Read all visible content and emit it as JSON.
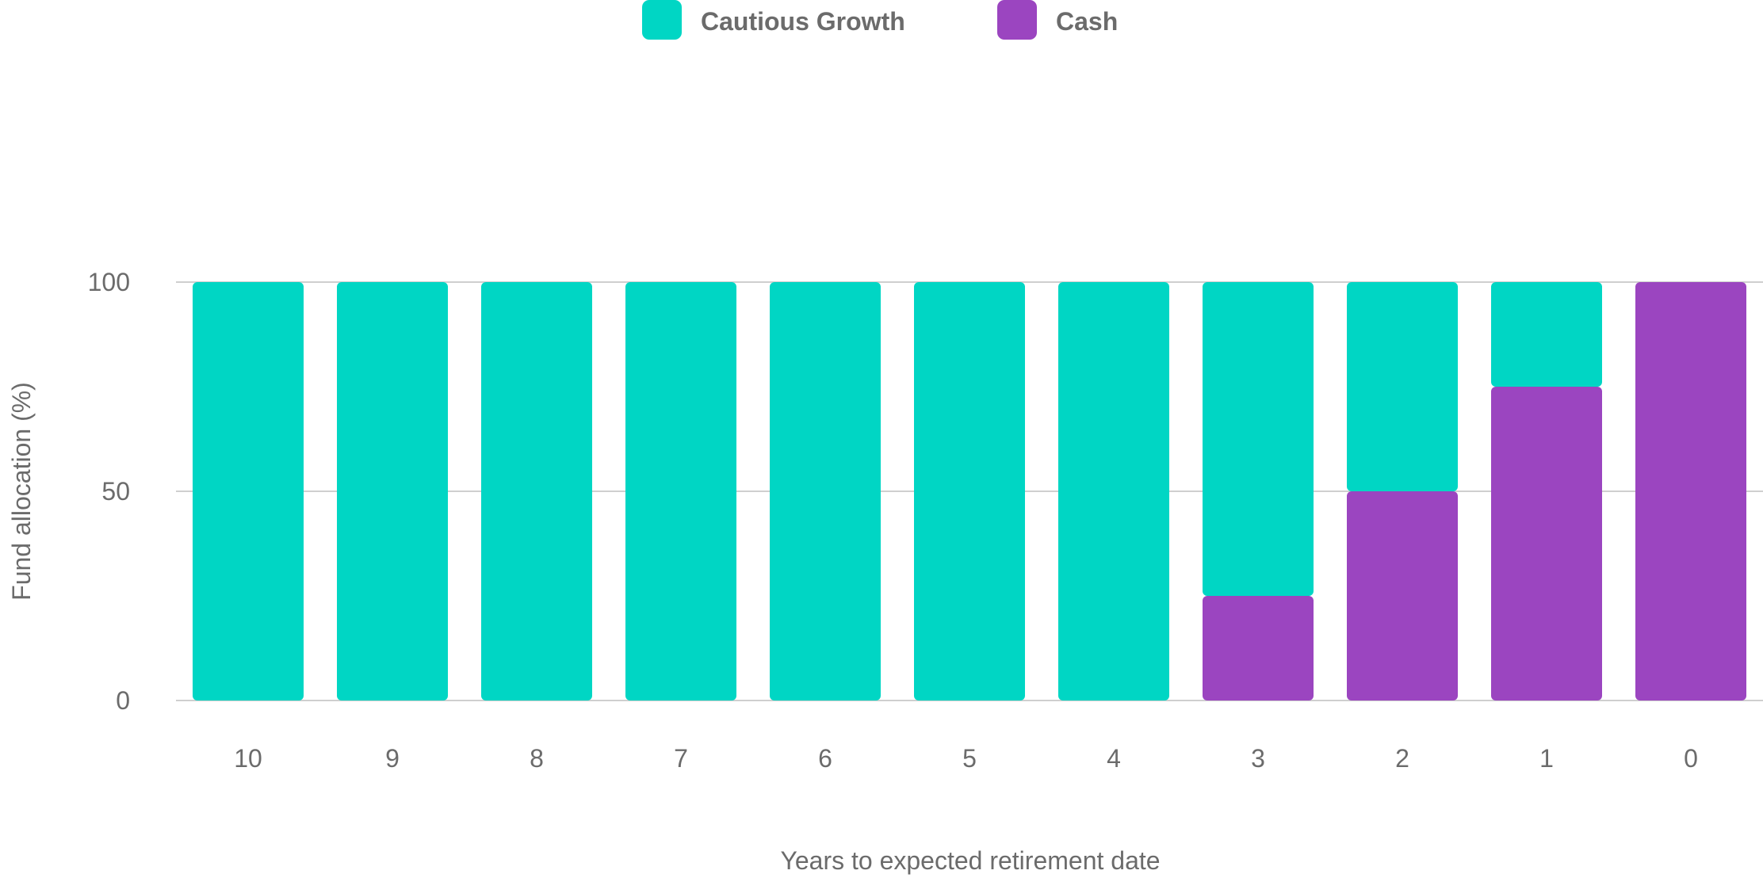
{
  "chart_data": {
    "type": "bar",
    "stacked": true,
    "title": "",
    "xlabel": "Years to expected retirement date",
    "ylabel": "Fund allocation (%)",
    "categories": [
      "10",
      "9",
      "8",
      "7",
      "6",
      "5",
      "4",
      "3",
      "2",
      "1",
      "0"
    ],
    "series": [
      {
        "name": "Cautious Growth",
        "color": "#00d6c4",
        "values": [
          100,
          100,
          100,
          100,
          100,
          100,
          100,
          75,
          50,
          25,
          0
        ]
      },
      {
        "name": "Cash",
        "color": "#9b45c0",
        "values": [
          0,
          0,
          0,
          0,
          0,
          0,
          0,
          25,
          50,
          75,
          100
        ]
      }
    ],
    "ylim": [
      0,
      100
    ],
    "yticks": [
      "0",
      "50",
      "100"
    ],
    "grid": true,
    "legend_position": "top-center"
  }
}
